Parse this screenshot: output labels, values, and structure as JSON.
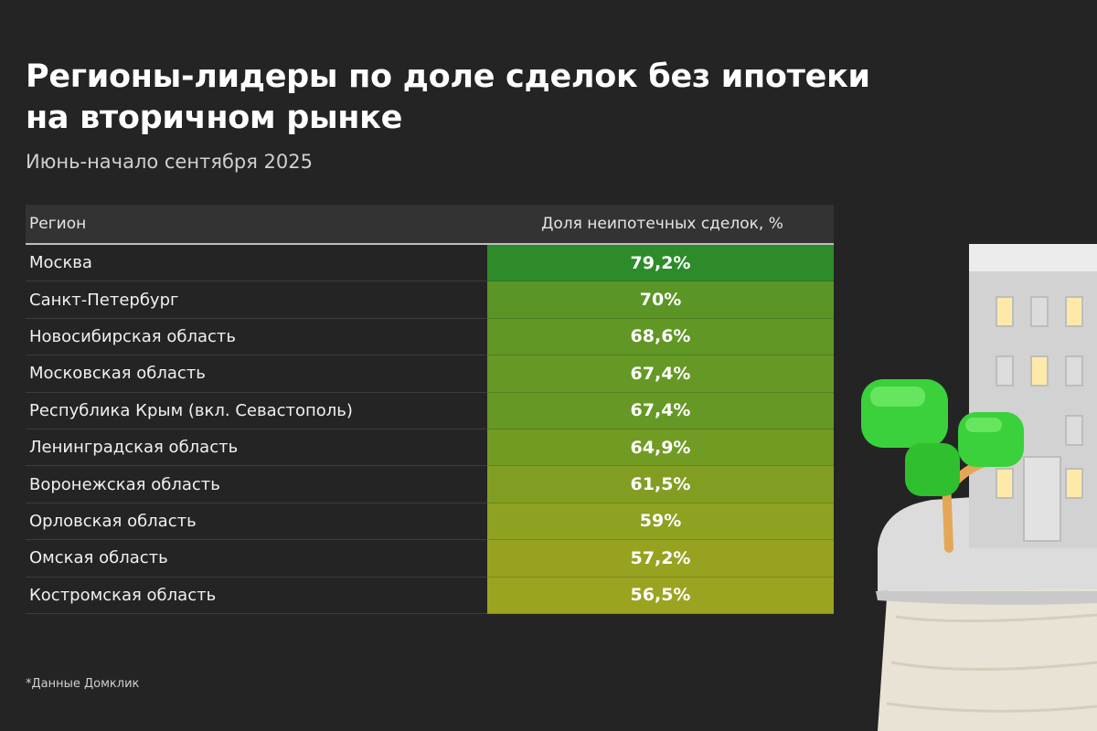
{
  "title_line1": "Регионы-лидеры по доле сделок без ипотеки",
  "title_line2": "на вторичном рынке",
  "subtitle": "Июнь-начало сентября 2025",
  "footnote": "*Данные Домклик",
  "colors": {
    "background": "#242424",
    "header_bg": "#333333",
    "value_high": "#2e8b2a",
    "value_low": "#9aa420"
  },
  "chart_data": {
    "type": "table",
    "columns": [
      "Регион",
      "Доля неипотечных сделок, %"
    ],
    "rows": [
      {
        "region": "Москва",
        "value": 79.2,
        "label": "79,2%"
      },
      {
        "region": "Санкт-Петербург",
        "value": 70,
        "label": "70%"
      },
      {
        "region": "Новосибирская область",
        "value": 68.6,
        "label": "68,6%"
      },
      {
        "region": "Московская область",
        "value": 67.4,
        "label": "67,4%"
      },
      {
        "region": "Республика Крым (вкл. Севастополь)",
        "value": 67.4,
        "label": "67,4%"
      },
      {
        "region": "Ленинградская область",
        "value": 64.9,
        "label": "64,9%"
      },
      {
        "region": "Воронежская область",
        "value": 61.5,
        "label": "61,5%"
      },
      {
        "region": "Орловская область",
        "value": 59,
        "label": "59%"
      },
      {
        "region": "Омская область",
        "value": 57.2,
        "label": "57,2%"
      },
      {
        "region": "Костромская область",
        "value": 56.5,
        "label": "56,5%"
      }
    ]
  },
  "illustration": {
    "icons": [
      "building-icon",
      "tree-icon"
    ]
  }
}
